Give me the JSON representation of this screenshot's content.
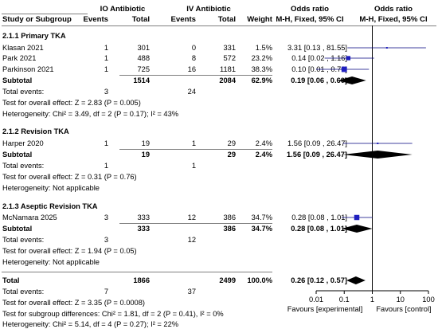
{
  "header": {
    "study": "Study or Subgroup",
    "io_group": "IO Antibiotic",
    "iv_group": "IV Antibiotic",
    "events": "Events",
    "total": "Total",
    "weight": "Weight",
    "or_col_title": "Odds ratio",
    "or_col_method": "M-H, Fixed, 95% CI",
    "plot_title": "Odds ratio",
    "plot_method": "M-H, Fixed, 95% CI"
  },
  "subgroups": [
    {
      "title": "2.1.1 Primary TKA",
      "studies": [
        {
          "name": "Klasan 2021",
          "io_events": "1",
          "io_total": "301",
          "iv_events": "0",
          "iv_total": "331",
          "weight": "1.5%",
          "ci_text": "3.31 [0.13 , 81.55]"
        },
        {
          "name": "Park 2021",
          "io_events": "1",
          "io_total": "488",
          "iv_events": "8",
          "iv_total": "572",
          "weight": "23.2%",
          "ci_text": "0.14 [0.02 , 1.16]"
        },
        {
          "name": "Parkinson 2021",
          "io_events": "1",
          "io_total": "725",
          "iv_events": "16",
          "iv_total": "1181",
          "weight": "38.3%",
          "ci_text": "0.10 [0.01 , 0.76]"
        }
      ],
      "subtotal": {
        "label": "Subtotal",
        "io_total": "1514",
        "iv_total": "2084",
        "weight": "62.9%",
        "ci_text": "0.19 [0.06 , 0.60]"
      },
      "total_events": {
        "label": "Total events:",
        "io": "3",
        "iv": "24"
      },
      "notes": [
        "Test for overall effect: Z = 2.83 (P = 0.005)",
        "Heterogeneity: Chi² = 3.49, df = 2 (P = 0.17); I² = 43%"
      ]
    },
    {
      "title": "2.1.2 Revision TKA",
      "studies": [
        {
          "name": "Harper 2020",
          "io_events": "1",
          "io_total": "19",
          "iv_events": "1",
          "iv_total": "29",
          "weight": "2.4%",
          "ci_text": "1.56 [0.09 , 26.47]"
        }
      ],
      "subtotal": {
        "label": "Subtotal",
        "io_total": "19",
        "iv_total": "29",
        "weight": "2.4%",
        "ci_text": "1.56 [0.09 , 26.47]"
      },
      "total_events": {
        "label": "Total events:",
        "io": "1",
        "iv": "1"
      },
      "notes": [
        "Test for overall effect: Z = 0.31 (P = 0.76)",
        "Heterogeneity: Not applicable"
      ]
    },
    {
      "title": "2.1.3 Aseptic Revision TKA",
      "studies": [
        {
          "name": "McNamara 2025",
          "io_events": "3",
          "io_total": "333",
          "iv_events": "12",
          "iv_total": "386",
          "weight": "34.7%",
          "ci_text": "0.28 [0.08 , 1.01]"
        }
      ],
      "subtotal": {
        "label": "Subtotal",
        "io_total": "333",
        "iv_total": "386",
        "weight": "34.7%",
        "ci_text": "0.28 [0.08 , 1.01]"
      },
      "total_events": {
        "label": "Total events:",
        "io": "3",
        "iv": "12"
      },
      "notes": [
        "Test for overall effect: Z = 1.94 (P = 0.05)",
        "Heterogeneity: Not applicable"
      ]
    }
  ],
  "overall": {
    "label": "Total",
    "io_total": "1866",
    "iv_total": "2499",
    "weight": "100.0%",
    "ci_text": "0.26 [0.12 , 0.57]",
    "total_events": {
      "label": "Total events:",
      "io": "7",
      "iv": "37"
    },
    "notes": [
      "Test for overall effect: Z = 3.35 (P = 0.0008)",
      "Test for subgroup differences: Chi² = 1.81, df = 2 (P = 0.41), I² = 0%",
      "Heterogeneity: Chi² = 5.14, df = 4 (P = 0.27); I² = 22%"
    ]
  },
  "axis": {
    "ticks": [
      0.01,
      0.1,
      1,
      10,
      100
    ],
    "tick_labels": [
      "0.01",
      "0.1",
      "1",
      "10",
      "100"
    ],
    "favours_left": "Favours [experimental]",
    "favours_right": "Favours [control]"
  },
  "colors": {
    "study_marker": "#1f1fbf",
    "diamond": "#000000",
    "ci_line": "#00007f",
    "rule": "#7f7f7f"
  },
  "chart_data": {
    "type": "forest",
    "scale": "log",
    "xlim": [
      0.01,
      100
    ],
    "studies": [
      {
        "name": "Klasan 2021",
        "or": 3.31,
        "lo": 0.13,
        "hi": 81.55
      },
      {
        "name": "Park 2021",
        "or": 0.14,
        "lo": 0.02,
        "hi": 1.16
      },
      {
        "name": "Parkinson 2021",
        "or": 0.1,
        "lo": 0.01,
        "hi": 0.76
      },
      {
        "name": "Harper 2020",
        "or": 1.56,
        "lo": 0.09,
        "hi": 26.47
      },
      {
        "name": "McNamara 2025",
        "or": 0.28,
        "lo": 0.08,
        "hi": 1.01
      }
    ],
    "pooled": [
      {
        "name": "Subtotal 2.1.1",
        "or": 0.19,
        "lo": 0.06,
        "hi": 0.6
      },
      {
        "name": "Subtotal 2.1.2",
        "or": 1.56,
        "lo": 0.09,
        "hi": 26.47
      },
      {
        "name": "Subtotal 2.1.3",
        "or": 0.28,
        "lo": 0.08,
        "hi": 1.01
      },
      {
        "name": "Total",
        "or": 0.26,
        "lo": 0.12,
        "hi": 0.57
      }
    ]
  }
}
